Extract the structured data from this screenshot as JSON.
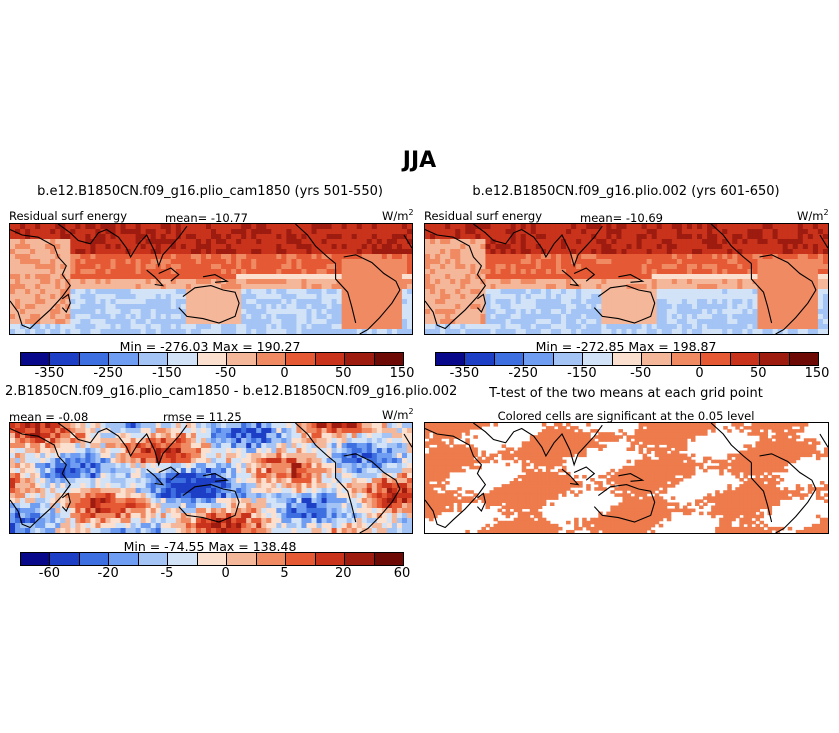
{
  "figure": {
    "season": "JJA"
  },
  "colors": {
    "palette": [
      "#08088a",
      "#1c3fc6",
      "#3e6fe0",
      "#6f9df2",
      "#a3c4f5",
      "#d2e3f8",
      "#fbe0d0",
      "#f4b79a",
      "#f08a63",
      "#e55a34",
      "#c9321b",
      "#9e1b10",
      "#6e0a06"
    ],
    "sig_fill": "#ee7b4c"
  },
  "chart_data": [
    {
      "type": "heatmap",
      "title": "b.e12.B1850CN.f09_g16.plio_cam1850 (yrs 501-550)",
      "variable": "Residual surf energy",
      "units_base": "W/m",
      "units_exp": "2",
      "mean_label": "mean= -10.77",
      "minmax_label": "Min = -276.03  Max = 190.27",
      "min": -276.03,
      "max": 190.27,
      "mean": -10.77,
      "colorbar_ticks": [
        "-350",
        "-250",
        "-150",
        "-50",
        "0",
        "50",
        "150"
      ]
    },
    {
      "type": "heatmap",
      "title": "b.e12.B1850CN.f09_g16.plio.002 (yrs 601-650)",
      "variable": "Residual surf energy",
      "units_base": "W/m",
      "units_exp": "2",
      "mean_label": "mean= -10.69",
      "minmax_label": "Min = -272.85  Max = 198.87",
      "min": -272.85,
      "max": 198.87,
      "mean": -10.69,
      "colorbar_ticks": [
        "-350",
        "-250",
        "-150",
        "-50",
        "0",
        "50",
        "150"
      ]
    },
    {
      "type": "heatmap",
      "title": "2.B1850CN.f09_g16.plio_cam1850 - b.e12.B1850CN.f09_g16.plio.002",
      "mean_label": "mean =  -0.08",
      "rmse_label": "rmse =  11.25",
      "units_base": "W/m",
      "units_exp": "2",
      "minmax_label": "Min = -74.55  Max = 138.48",
      "min": -74.55,
      "max": 138.48,
      "mean": -0.08,
      "rmse": 11.25,
      "colorbar_ticks": [
        "-60",
        "-20",
        "-5",
        "0",
        "5",
        "20",
        "60"
      ]
    },
    {
      "type": "heatmap",
      "title": "T-test of the two means at each grid point",
      "subtitle": "Colored cells are significant at the 0.05 level",
      "significance_level": 0.05
    }
  ]
}
